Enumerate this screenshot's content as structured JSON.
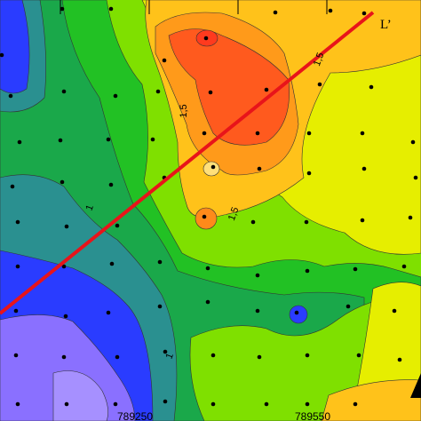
{
  "map": {
    "line_label": "L’",
    "contour_labels": [
      "1,5",
      "1,5",
      "1,5",
      "1",
      "1"
    ],
    "x_labels": [
      "789250",
      "789550"
    ]
  }
}
